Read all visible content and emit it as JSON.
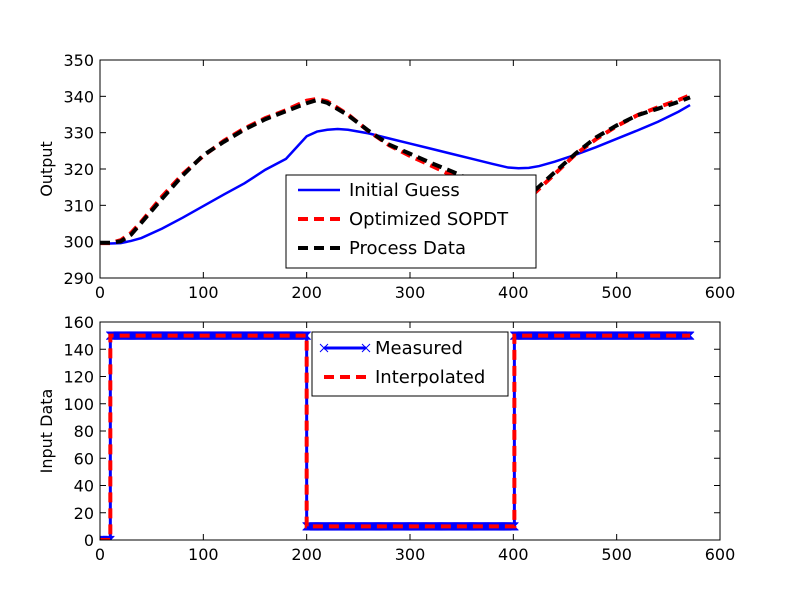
{
  "chart_data": [
    {
      "type": "line",
      "ylabel": "Output",
      "xlim": [
        0,
        600
      ],
      "ylim": [
        290,
        350
      ],
      "xticks": [
        0,
        100,
        200,
        300,
        400,
        500,
        600
      ],
      "yticks": [
        290,
        300,
        310,
        320,
        330,
        340,
        350
      ],
      "grid": false,
      "legend_position": "lower-center",
      "series": [
        {
          "name": "Initial Guess",
          "color": "#0000ff",
          "style": "solid",
          "x": [
            0,
            10,
            20,
            30,
            40,
            60,
            80,
            100,
            120,
            140,
            160,
            180,
            200,
            210,
            220,
            230,
            240,
            260,
            280,
            300,
            320,
            340,
            360,
            380,
            395,
            405,
            415,
            425,
            440,
            460,
            480,
            500,
            520,
            540,
            560,
            571
          ],
          "y": [
            299.5,
            299.5,
            299.6,
            300.2,
            301.0,
            303.6,
            306.6,
            309.8,
            313.0,
            316.1,
            319.8,
            322.8,
            329.0,
            330.3,
            330.8,
            331.0,
            330.8,
            329.8,
            328.4,
            327.0,
            325.6,
            324.2,
            322.8,
            321.4,
            320.4,
            320.2,
            320.3,
            320.8,
            322.0,
            323.9,
            326.0,
            328.3,
            330.6,
            333.0,
            335.8,
            337.6
          ]
        },
        {
          "name": "Optimized SOPDT",
          "color": "#ff0000",
          "style": "dashed",
          "x": [
            0,
            10,
            20,
            30,
            40,
            60,
            80,
            100,
            120,
            140,
            160,
            180,
            200,
            210,
            220,
            240,
            260,
            280,
            300,
            320,
            340,
            360,
            380,
            400,
            410,
            420,
            440,
            460,
            480,
            500,
            520,
            540,
            560,
            571
          ],
          "y": [
            299.6,
            299.6,
            300.4,
            302.4,
            305.5,
            312.4,
            318.6,
            323.6,
            327.8,
            331.2,
            334.0,
            336.2,
            338.8,
            339.3,
            338.6,
            335.0,
            330.4,
            326.5,
            323.6,
            321.0,
            318.3,
            315.8,
            313.4,
            311.4,
            311.0,
            313.2,
            318.6,
            324.0,
            328.2,
            331.8,
            334.8,
            337.0,
            339.0,
            340.3
          ]
        },
        {
          "name": "Process Data",
          "color": "#000000",
          "style": "dashed",
          "x": [
            0,
            10,
            20,
            30,
            40,
            60,
            80,
            100,
            120,
            140,
            160,
            180,
            200,
            210,
            220,
            240,
            260,
            280,
            300,
            320,
            340,
            360,
            380,
            400,
            410,
            420,
            440,
            460,
            480,
            500,
            520,
            540,
            560,
            571
          ],
          "y": [
            299.7,
            299.7,
            300.1,
            301.9,
            305.2,
            311.8,
            318.2,
            323.8,
            327.5,
            330.9,
            333.7,
            335.9,
            338.1,
            339.0,
            338.2,
            334.8,
            330.5,
            326.7,
            324.2,
            321.7,
            319.4,
            316.9,
            314.6,
            312.5,
            312.0,
            313.9,
            319.1,
            324.2,
            328.7,
            332.0,
            334.8,
            336.6,
            338.5,
            339.7
          ]
        }
      ]
    },
    {
      "type": "line",
      "ylabel": "Input Data",
      "xlim": [
        0,
        600
      ],
      "ylim": [
        0,
        160
      ],
      "xticks": [
        0,
        100,
        200,
        300,
        400,
        500,
        600
      ],
      "yticks": [
        0,
        20,
        40,
        60,
        80,
        100,
        120,
        140,
        160
      ],
      "grid": false,
      "legend_position": "top-center",
      "series": [
        {
          "name": "Measured",
          "color": "#0000ff",
          "style": "solid-with-x-markers",
          "step_changes": [
            {
              "x": 0,
              "y": 0
            },
            {
              "x": 10,
              "y": 150
            },
            {
              "x": 200,
              "y": 10
            },
            {
              "x": 401,
              "y": 150
            },
            {
              "x": 571,
              "y": 150
            }
          ],
          "marker_spacing": 1
        },
        {
          "name": "Interpolated",
          "color": "#ff0000",
          "style": "dashed",
          "step_changes": [
            {
              "x": 0,
              "y": 0
            },
            {
              "x": 10,
              "y": 150
            },
            {
              "x": 200,
              "y": 10
            },
            {
              "x": 401,
              "y": 150
            },
            {
              "x": 571,
              "y": 150
            }
          ]
        }
      ]
    }
  ]
}
